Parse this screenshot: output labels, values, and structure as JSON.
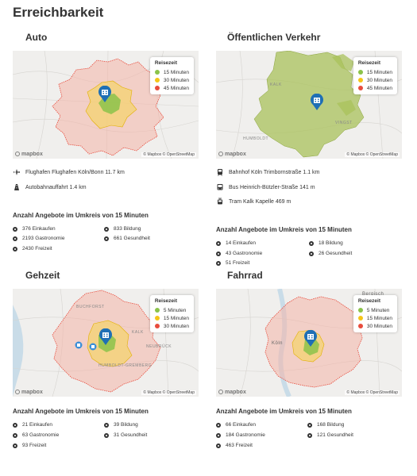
{
  "page_title": "Erreichbarkeit",
  "colors": {
    "green": "#8bc34a",
    "yellow": "#f5c518",
    "red": "#e84c3d",
    "pin": "#1f6fb5"
  },
  "legend_title": "Reisezeit",
  "attribution": "© Mapbox © OpenStreetMap",
  "logo_text": "mapbox",
  "sections": {
    "auto": {
      "title": "Auto",
      "legend": [
        "15 Minuten",
        "30 Minuten",
        "45 Minuten"
      ],
      "infos": [
        {
          "icon": "airplane-icon",
          "text": "Flughafen Flughafen Köln/Bonn 11.7 km"
        },
        {
          "icon": "highway-icon",
          "text": "Autobahnauffahrt 1.4 km"
        }
      ],
      "stats_title": "Anzahl Angebote im Umkreis von 15 Minuten",
      "stats": [
        "376 Einkaufen",
        "833 Bildung",
        "2193 Gastronomie",
        "661 Gesundheit",
        "2430 Freizeit"
      ]
    },
    "oev": {
      "title": "Öffentlichen Verkehr",
      "legend": [
        "15 Minuten",
        "30 Minuten",
        "45 Minuten"
      ],
      "map_labels": [
        "KALK",
        "VINGST",
        "HUMBOLDT"
      ],
      "infos": [
        {
          "icon": "train-icon",
          "text": "Bahnhof Köln Trimbornstraße 1.1 km"
        },
        {
          "icon": "bus-icon",
          "text": "Bus Heinrich-Bützler-Straße 141 m"
        },
        {
          "icon": "tram-icon",
          "text": "Tram Kalk Kapelle 469 m"
        }
      ],
      "stats_title": "Anzahl Angebote im Umkreis von 15 Minuten",
      "stats": [
        "14 Einkaufen",
        "18 Bildung",
        "43 Gastronomie",
        "26 Gesundheit",
        "51 Freizeit"
      ]
    },
    "gehzeit": {
      "title": "Gehzeit",
      "legend": [
        "5 Minuten",
        "15 Minuten",
        "30 Minuten"
      ],
      "map_labels": [
        "BUCHFORST",
        "KALK",
        "HUMBOLDT-GREMBERG",
        "NEUBRÜCK"
      ],
      "stats_title": "Anzahl Angebote im Umkreis von 15 Minuten",
      "stats": [
        "21 Einkaufen",
        "39 Bildung",
        "63 Gastronomie",
        "31 Gesundheit",
        "93 Freizeit"
      ]
    },
    "fahrrad": {
      "title": "Fahrrad",
      "legend": [
        "5 Minuten",
        "15 Minuten",
        "30 Minuten"
      ],
      "map_labels": [
        "Bergisch",
        "Köln"
      ],
      "stats_title": "Anzahl Angebote im Umkreis von 15 Minuten",
      "stats": [
        "66 Einkaufen",
        "168 Bildung",
        "184 Gastronomie",
        "121 Gesundheit",
        "463 Freizeit"
      ]
    }
  }
}
